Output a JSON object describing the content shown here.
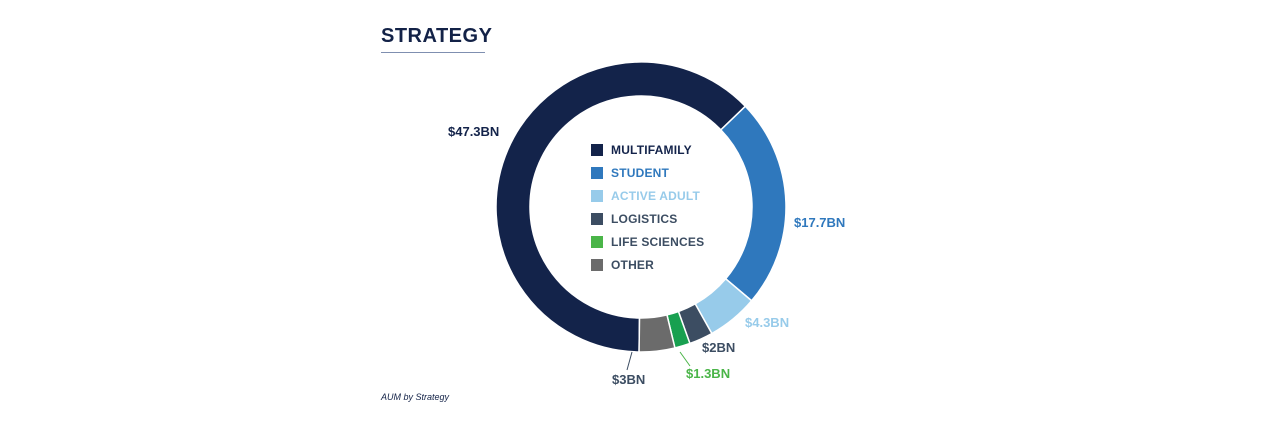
{
  "title": "STRATEGY",
  "caption": "AUM by Strategy",
  "chart_data": {
    "type": "pie",
    "variant": "donut",
    "title": "STRATEGY",
    "unit": "$BN",
    "legend_position": "center",
    "slices": [
      {
        "name": "MULTIFAMILY",
        "value": 47.3,
        "label": "$47.3BN",
        "color": "#13234a",
        "label_color": "#13234a"
      },
      {
        "name": "STUDENT",
        "value": 17.7,
        "label": "$17.7BN",
        "color": "#2f78bd",
        "label_color": "#2f78bd"
      },
      {
        "name": "ACTIVE ADULT",
        "value": 4.3,
        "label": "$4.3BN",
        "color": "#97cbea",
        "label_color": "#97cbea"
      },
      {
        "name": "LOGISTICS",
        "value": 2,
        "label": "$2BN",
        "color": "#3c4d62",
        "label_color": "#3c4d62"
      },
      {
        "name": "LIFE SCIENCES",
        "value": 1.3,
        "label": "$1.3BN",
        "color": "#18a050",
        "label_color": "#4ab548"
      },
      {
        "name": "OTHER",
        "value": 3,
        "label": "$3BN",
        "color": "#6b6b6b",
        "label_color": "#3c4d62"
      }
    ]
  },
  "legend": [
    {
      "label": "MULTIFAMILY",
      "swatch_color": "#13234a",
      "text_color": "#13234a"
    },
    {
      "label": "STUDENT",
      "swatch_color": "#2f78bd",
      "text_color": "#2f78bd"
    },
    {
      "label": "ACTIVE ADULT",
      "swatch_color": "#97cbea",
      "text_color": "#97cbea"
    },
    {
      "label": "LOGISTICS",
      "swatch_color": "#3c4d62",
      "text_color": "#3c4d62"
    },
    {
      "label": "LIFE SCIENCES",
      "swatch_color": "#4ab548",
      "text_color": "#3c4d62"
    },
    {
      "label": "OTHER",
      "swatch_color": "#6b6b6b",
      "text_color": "#3c4d62"
    }
  ]
}
